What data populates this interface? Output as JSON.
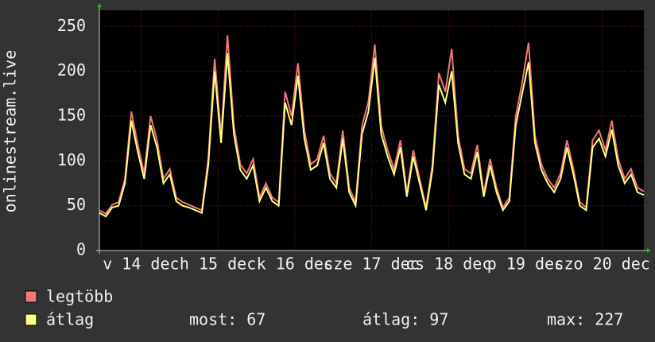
{
  "chart_data": {
    "type": "line",
    "ylabel": "onlinestream.live",
    "x": [
      0,
      2,
      4,
      6,
      8,
      10,
      12,
      14,
      16,
      18,
      20,
      22,
      24,
      26,
      28,
      30,
      32,
      34,
      36,
      38,
      40,
      42,
      44,
      46,
      48,
      50,
      52,
      54,
      56,
      58,
      60,
      62,
      64,
      66,
      68,
      70,
      72,
      74,
      76,
      78,
      80,
      82,
      84,
      86,
      88,
      90,
      92,
      94,
      96,
      98,
      100,
      102,
      104,
      106,
      108,
      110,
      112,
      114,
      116,
      118,
      120,
      122,
      124,
      126,
      128,
      130,
      132,
      134,
      136,
      138,
      140,
      142,
      144,
      146,
      148,
      150,
      152,
      154,
      156,
      158,
      160,
      162,
      164,
      166,
      168,
      170
    ],
    "series": [
      {
        "name": "legtöbb",
        "color": "#f07878",
        "values": [
          45,
          41,
          51,
          54,
          80,
          155,
          118,
          86,
          150,
          123,
          80,
          91,
          59,
          54,
          51,
          48,
          45,
          102,
          214,
          128,
          240,
          139,
          96,
          86,
          102,
          59,
          75,
          59,
          54,
          177,
          150,
          209,
          134,
          96,
          102,
          128,
          86,
          75,
          134,
          70,
          54,
          139,
          166,
          230,
          139,
          112,
          91,
          123,
          64,
          112,
          80,
          48,
          96,
          198,
          177,
          225,
          128,
          91,
          86,
          118,
          64,
          102,
          70,
          48,
          59,
          150,
          187,
          232,
          128,
          96,
          80,
          70,
          86,
          123,
          91,
          54,
          48,
          123,
          134,
          112,
          145,
          102,
          80,
          91,
          70,
          66
        ]
      },
      {
        "name": "átlag",
        "color": "#ffff80",
        "values": [
          42,
          38,
          48,
          50,
          75,
          145,
          110,
          80,
          140,
          115,
          75,
          85,
          55,
          50,
          48,
          45,
          42,
          95,
          200,
          120,
          220,
          130,
          90,
          80,
          95,
          55,
          70,
          55,
          50,
          165,
          140,
          195,
          125,
          90,
          95,
          120,
          80,
          70,
          125,
          65,
          50,
          130,
          155,
          215,
          130,
          105,
          85,
          115,
          60,
          105,
          75,
          45,
          90,
          185,
          165,
          200,
          120,
          85,
          80,
          110,
          60,
          95,
          65,
          45,
          55,
          140,
          175,
          210,
          120,
          90,
          75,
          65,
          80,
          115,
          85,
          50,
          45,
          115,
          125,
          105,
          135,
          95,
          75,
          85,
          65,
          62
        ]
      }
    ],
    "xlim": [
      0,
      170
    ],
    "xticks": [
      {
        "value": 13,
        "label": "v 14 dec"
      },
      {
        "value": 37,
        "label": "h 15 dec"
      },
      {
        "value": 61,
        "label": "k 16 dec"
      },
      {
        "value": 85,
        "label": "sze 17 dec"
      },
      {
        "value": 109,
        "label": "cs 18 dec"
      },
      {
        "value": 133,
        "label": "p 19 dec"
      },
      {
        "value": 157,
        "label": "szo 20 dec"
      }
    ],
    "ylim": [
      0,
      268
    ],
    "yticks": [
      0,
      50,
      100,
      150,
      200,
      250
    ],
    "grid": true,
    "stats": [
      "most: 67",
      "átlag: 97",
      "max: 227"
    ]
  }
}
